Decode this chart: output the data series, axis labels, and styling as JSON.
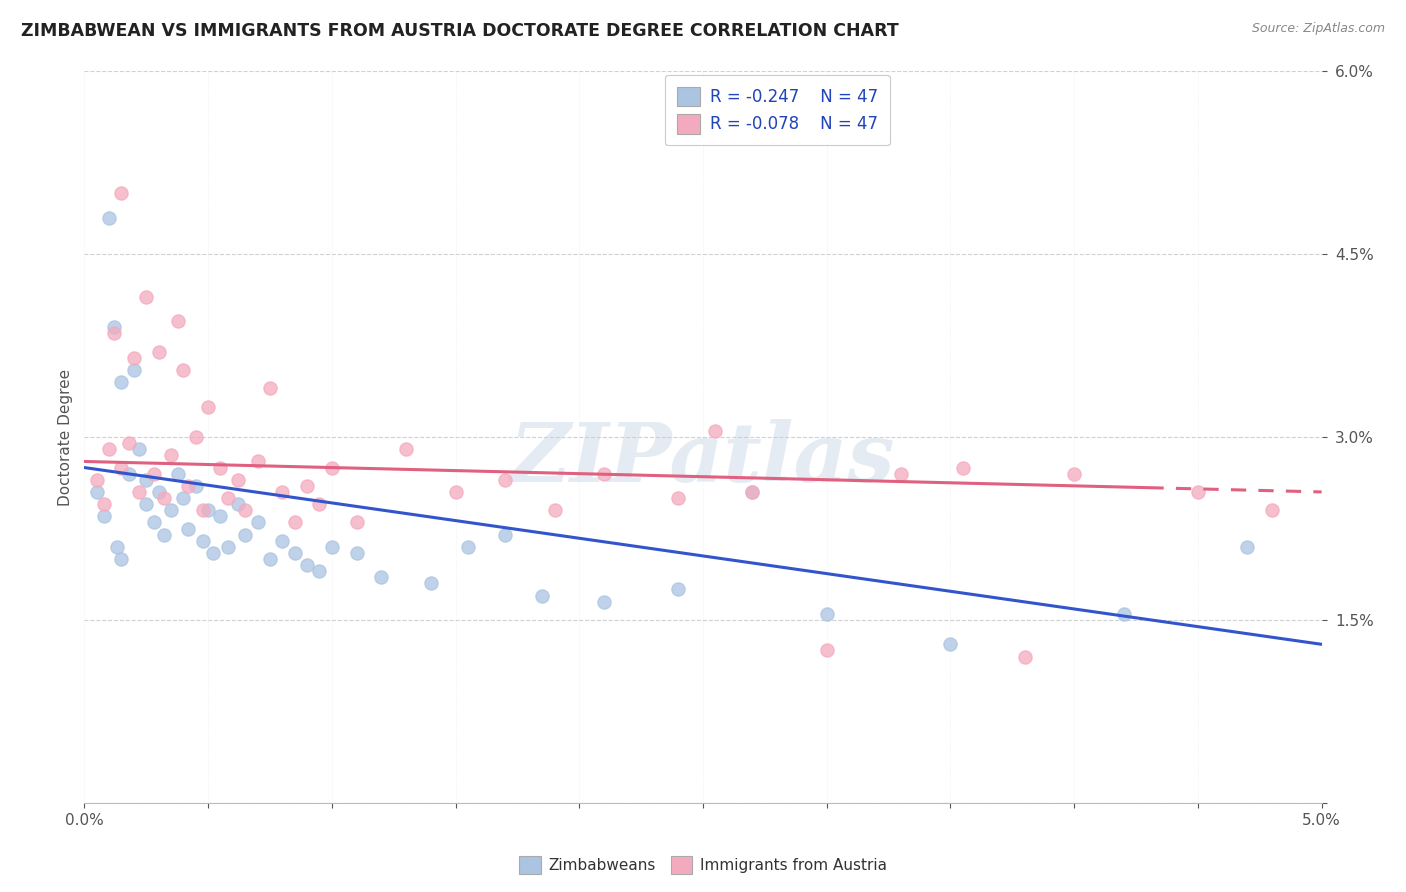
{
  "title": "ZIMBABWEAN VS IMMIGRANTS FROM AUSTRIA DOCTORATE DEGREE CORRELATION CHART",
  "source": "Source: ZipAtlas.com",
  "ylabel_label": "Doctorate Degree",
  "xmin": 0.0,
  "xmax": 5.0,
  "ymin": 0.0,
  "ymax": 6.0,
  "legend_blue_r": "R = -0.247",
  "legend_blue_n": "N = 47",
  "legend_pink_r": "R = -0.078",
  "legend_pink_n": "N = 47",
  "blue_color": "#aac4e2",
  "pink_color": "#f4aabe",
  "blue_line_color": "#3355cc",
  "pink_line_color": "#e06080",
  "pink_dash_start": 4.3,
  "watermark_text": "ZIPatlas",
  "blue_dots_x": [
    0.05,
    0.08,
    0.1,
    0.12,
    0.13,
    0.15,
    0.15,
    0.18,
    0.2,
    0.22,
    0.25,
    0.25,
    0.28,
    0.3,
    0.32,
    0.35,
    0.38,
    0.4,
    0.42,
    0.45,
    0.48,
    0.5,
    0.52,
    0.55,
    0.58,
    0.62,
    0.65,
    0.7,
    0.75,
    0.8,
    0.85,
    0.9,
    0.95,
    1.0,
    1.1,
    1.2,
    1.4,
    1.55,
    1.7,
    1.85,
    2.1,
    2.4,
    2.7,
    3.0,
    3.5,
    4.2,
    4.7
  ],
  "blue_dots_y": [
    2.55,
    2.35,
    4.8,
    3.9,
    2.1,
    2.0,
    3.45,
    2.7,
    3.55,
    2.9,
    2.65,
    2.45,
    2.3,
    2.55,
    2.2,
    2.4,
    2.7,
    2.5,
    2.25,
    2.6,
    2.15,
    2.4,
    2.05,
    2.35,
    2.1,
    2.45,
    2.2,
    2.3,
    2.0,
    2.15,
    2.05,
    1.95,
    1.9,
    2.1,
    2.05,
    1.85,
    1.8,
    2.1,
    2.2,
    1.7,
    1.65,
    1.75,
    2.55,
    1.55,
    1.3,
    1.55,
    2.1
  ],
  "pink_dots_x": [
    0.05,
    0.08,
    0.1,
    0.12,
    0.15,
    0.15,
    0.18,
    0.2,
    0.22,
    0.25,
    0.28,
    0.3,
    0.32,
    0.35,
    0.38,
    0.4,
    0.42,
    0.45,
    0.48,
    0.5,
    0.55,
    0.58,
    0.62,
    0.65,
    0.7,
    0.75,
    0.8,
    0.85,
    0.9,
    0.95,
    1.0,
    1.1,
    1.3,
    1.5,
    1.7,
    1.9,
    2.1,
    2.4,
    2.55,
    2.7,
    3.0,
    3.3,
    3.55,
    3.8,
    4.0,
    4.5,
    4.8
  ],
  "pink_dots_y": [
    2.65,
    2.45,
    2.9,
    3.85,
    5.0,
    2.75,
    2.95,
    3.65,
    2.55,
    4.15,
    2.7,
    3.7,
    2.5,
    2.85,
    3.95,
    3.55,
    2.6,
    3.0,
    2.4,
    3.25,
    2.75,
    2.5,
    2.65,
    2.4,
    2.8,
    3.4,
    2.55,
    2.3,
    2.6,
    2.45,
    2.75,
    2.3,
    2.9,
    2.55,
    2.65,
    2.4,
    2.7,
    2.5,
    3.05,
    2.55,
    1.25,
    2.7,
    2.75,
    1.2,
    2.7,
    2.55,
    2.4
  ],
  "blue_trend_x0": 0.0,
  "blue_trend_y0": 2.75,
  "blue_trend_x1": 5.0,
  "blue_trend_y1": 1.3,
  "pink_trend_x0": 0.0,
  "pink_trend_y0": 2.8,
  "pink_trend_x1": 5.0,
  "pink_trend_y1": 2.55
}
